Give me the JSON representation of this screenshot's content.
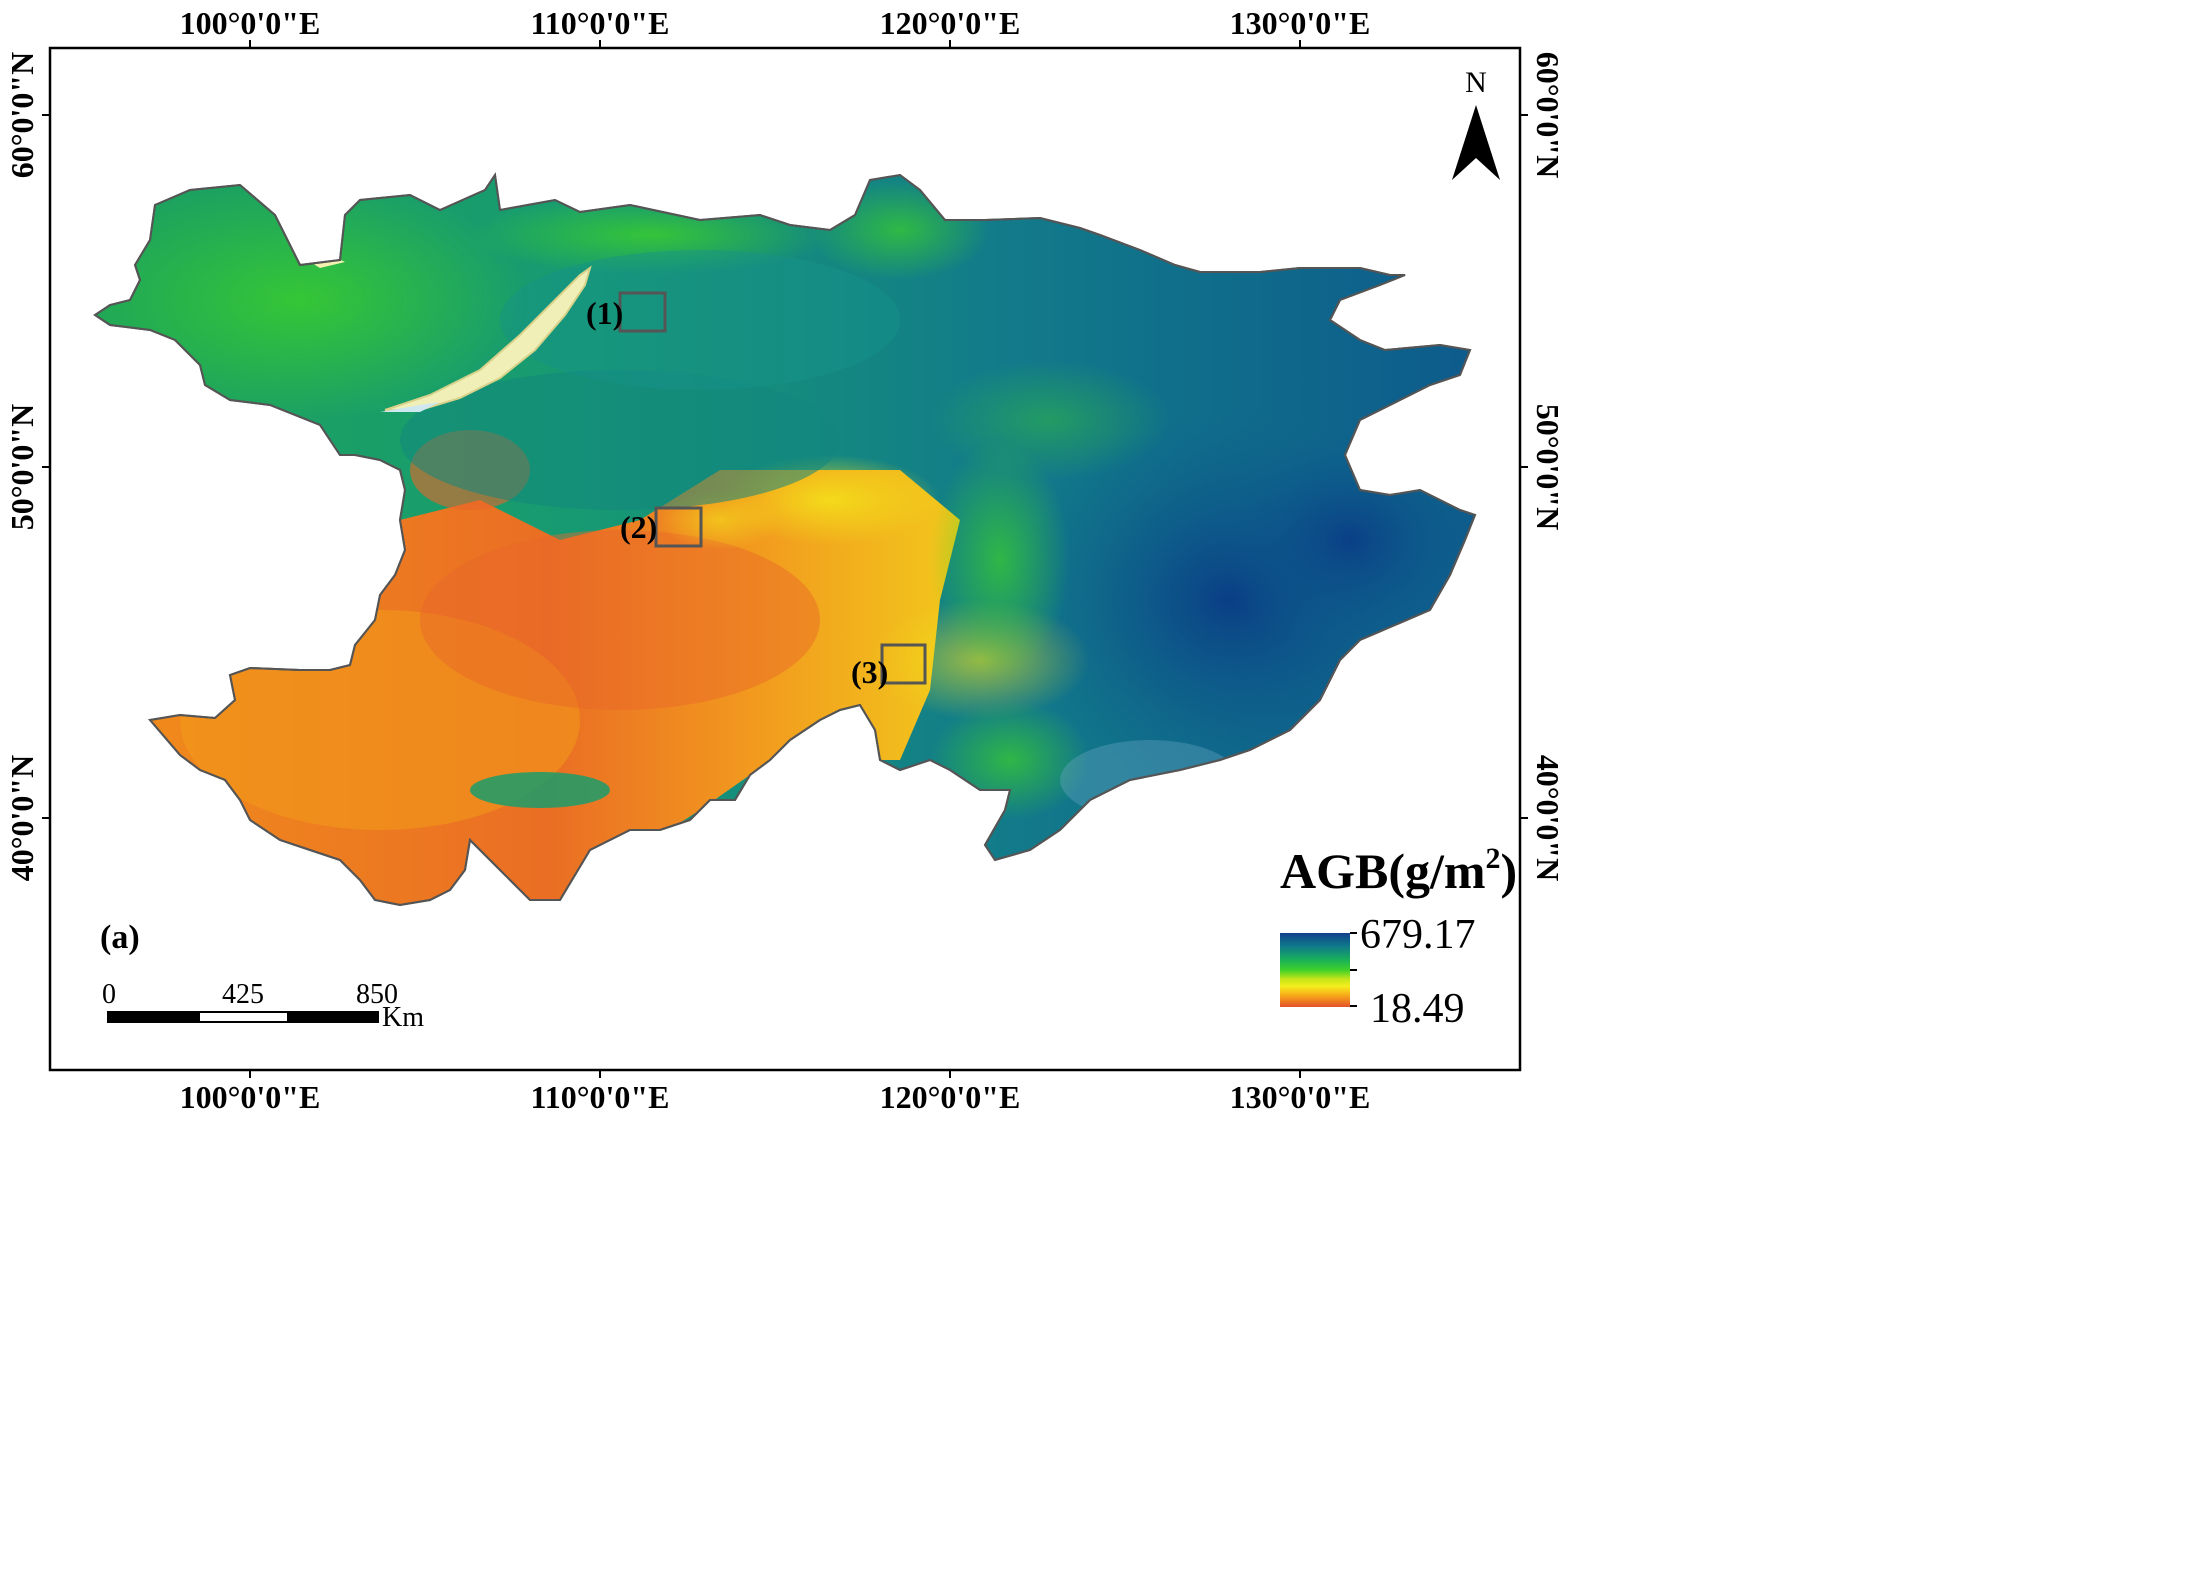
{
  "map": {
    "panel_label": "(a)",
    "top_lon_labels": [
      "100°0'0\"E",
      "110°0'0\"E",
      "120°0'0\"E",
      "130°0'0\"E"
    ],
    "bottom_lon_labels": [
      "100°0'0\"E",
      "110°0'0\"E",
      "120°0'0\"E",
      "130°0'0\"E"
    ],
    "left_lat_labels": [
      "60°0'0\"N",
      "50°0'0\"N",
      "40°0'0\"N"
    ],
    "right_lat_labels": [
      "60°0'0\"N",
      "50°0'0\"N",
      "40°0'0\"N"
    ],
    "inset_boxes": [
      "(1)",
      "(2)",
      "(3)"
    ],
    "north_arrow": {
      "label": "N",
      "icon": "north-arrow-icon"
    },
    "legend": {
      "title_main": "AGB(g/m",
      "title_sup": "2",
      "title_end": ")",
      "max": "679.17",
      "min": "18.49",
      "colors": [
        "#1a3a8c",
        "#0f6e8c",
        "#1aa86a",
        "#22c43a",
        "#8fd61a",
        "#f2f01a",
        "#f5a11a",
        "#e8502a"
      ]
    },
    "scale_bar": {
      "labels": [
        "0",
        "425",
        "850"
      ],
      "unit": "Km"
    },
    "colors": {
      "low": "#ef8a1f",
      "mid": "#f2e01c",
      "green": "#2fc62f",
      "teal": "#16928a",
      "high": "#0b4e8c",
      "outline": "#555555"
    }
  }
}
